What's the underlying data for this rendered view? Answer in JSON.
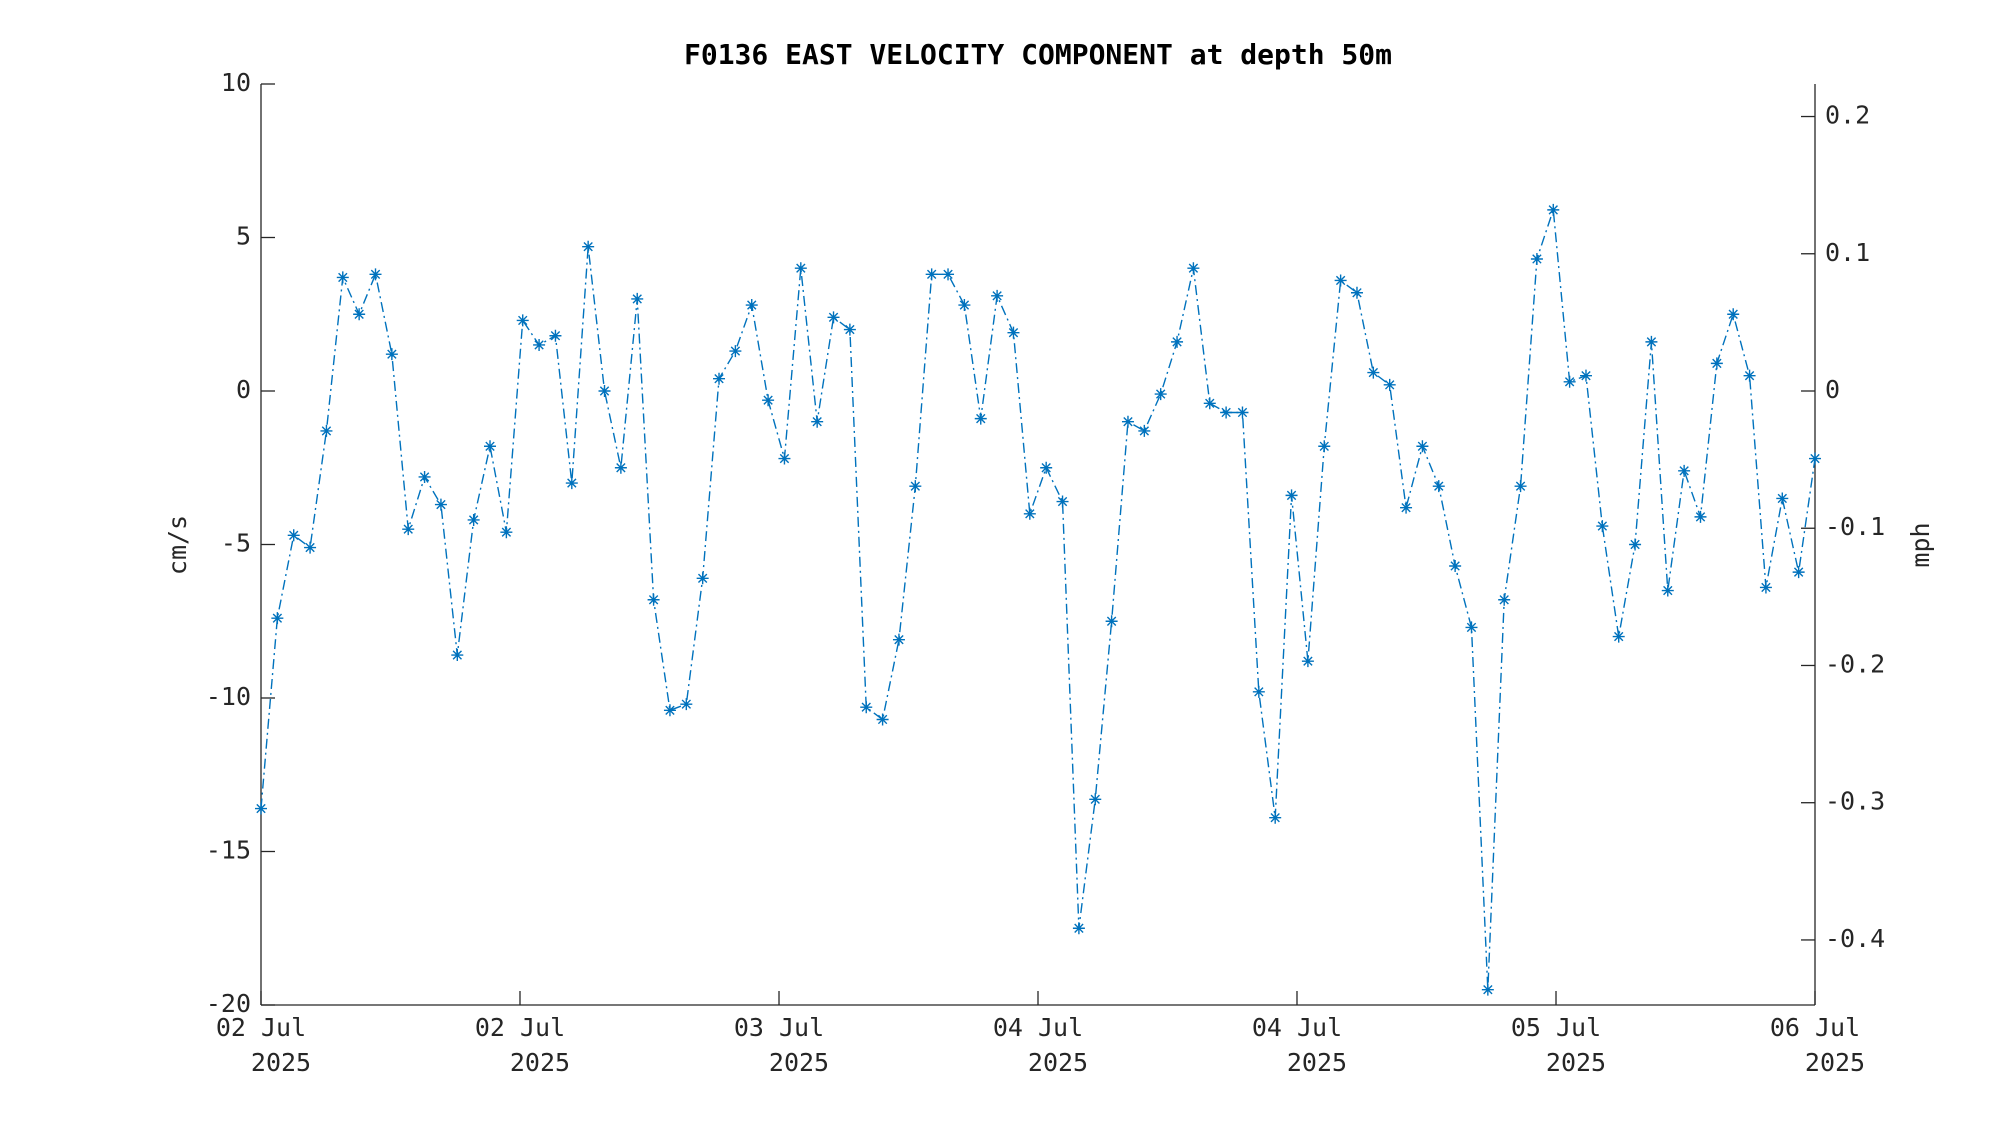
{
  "chart_data": {
    "type": "line",
    "title": "F0136 EAST VELOCITY COMPONENT at depth 50m",
    "ylabel": "cm/s",
    "y2label": "mph",
    "x": [
      0,
      1,
      2,
      3,
      4,
      5,
      6,
      7,
      8,
      9,
      10,
      11,
      12,
      13,
      14,
      15,
      16,
      17,
      18,
      19,
      20,
      21,
      22,
      23,
      24,
      25,
      26,
      27,
      28,
      29,
      30,
      31,
      32,
      33,
      34,
      35,
      36,
      37,
      38,
      39,
      40,
      41,
      42,
      43,
      44,
      45,
      46,
      47,
      48,
      49,
      50,
      51,
      52,
      53,
      54,
      55,
      56,
      57,
      58,
      59,
      60,
      61,
      62,
      63,
      64,
      65,
      66,
      67,
      68,
      69,
      70,
      71,
      72,
      73,
      74,
      75,
      76,
      77,
      78,
      79,
      80,
      81,
      82,
      83,
      84,
      85,
      86,
      87,
      88,
      89,
      90,
      91,
      92,
      93,
      94,
      95
    ],
    "series": [
      {
        "name": "East velocity",
        "color": "#0072bd",
        "values": [
          -13.6,
          -7.4,
          -4.7,
          -5.1,
          -1.3,
          3.7,
          2.5,
          3.8,
          1.2,
          -4.5,
          -2.8,
          -3.7,
          -8.6,
          -4.2,
          -1.8,
          -4.6,
          2.3,
          1.5,
          1.8,
          -3.0,
          4.7,
          0,
          -2.5,
          3.0,
          -6.8,
          -10.4,
          -10.2,
          -6.1,
          0.4,
          1.3,
          2.8,
          -0.3,
          -2.2,
          4.0,
          -1.0,
          2.4,
          2.0,
          -10.3,
          -10.7,
          -8.1,
          -3.1,
          3.8,
          3.8,
          2.8,
          -0.9,
          3.1,
          1.9,
          -4.0,
          -2.5,
          -3.6,
          -17.5,
          -13.3,
          -7.5,
          -1.0,
          -1.3,
          -0.1,
          1.6,
          4.0,
          -0.4,
          -0.7,
          -0.7,
          -9.8,
          -13.9,
          -3.4,
          -8.8,
          -1.8,
          3.6,
          3.2,
          0.6,
          0.2,
          -3.8,
          -1.8,
          -3.1,
          -5.7,
          -7.7,
          -19.5,
          -6.8,
          -3.1,
          4.3,
          5.9,
          0.3,
          0.5,
          -4.4,
          -8.0,
          -5.0,
          1.6,
          -6.5,
          -2.6,
          -4.1,
          0.9,
          2.5,
          0.5,
          -6.4,
          -3.5,
          -5.9,
          -2.2
        ]
      }
    ],
    "xlim": [
      0,
      95
    ],
    "xticks": [
      {
        "value": 0,
        "label": [
          "02 Jul",
          "2025"
        ]
      },
      {
        "value": 15.833,
        "label": [
          "02 Jul",
          "2025"
        ]
      },
      {
        "value": 31.667,
        "label": [
          "03 Jul",
          "2025"
        ]
      },
      {
        "value": 47.5,
        "label": [
          "04 Jul",
          "2025"
        ]
      },
      {
        "value": 63.333,
        "label": [
          "04 Jul",
          "2025"
        ]
      },
      {
        "value": 79.167,
        "label": [
          "05 Jul",
          "2025"
        ]
      },
      {
        "value": 95,
        "label": [
          "06 Jul",
          "2025"
        ]
      }
    ],
    "ylim": [
      -20,
      10
    ],
    "yticks": [
      -20,
      -15,
      -10,
      -5,
      0,
      5,
      10
    ],
    "y2lim": [
      -0.4474,
      0.2237
    ],
    "y2ticks": [
      -0.4,
      -0.3,
      -0.2,
      -0.1,
      0,
      0.1,
      0.2
    ],
    "grid": false
  }
}
